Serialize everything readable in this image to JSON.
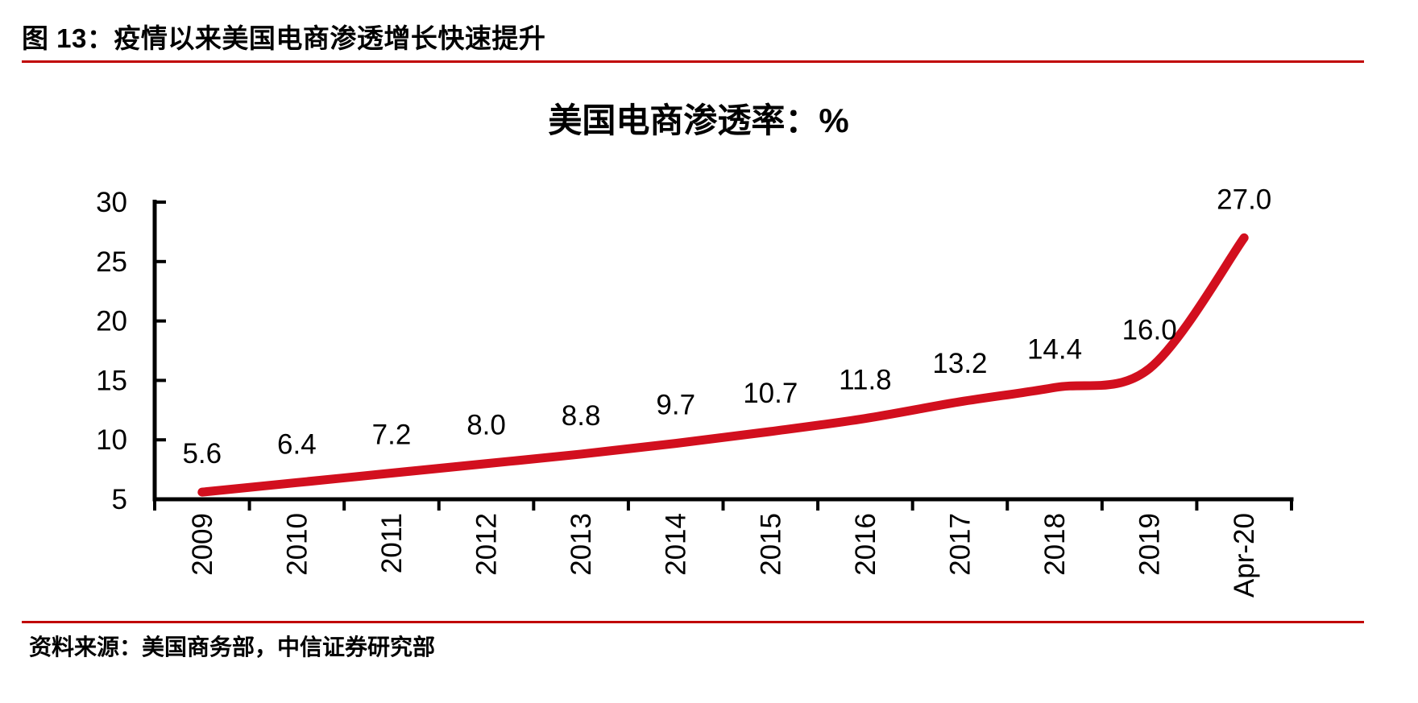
{
  "page": {
    "figure_label": "图 13：疫情以来美国电商渗透增长快速提升",
    "source_label": "资料来源：美国商务部，中信证券研究部"
  },
  "colors": {
    "rule_red": "#C00000",
    "line_red": "#D20F1E",
    "axis_black": "#000000",
    "text_black": "#000000",
    "background": "#FFFFFF"
  },
  "chart_data": {
    "type": "line",
    "title": "美国电商渗透率：%",
    "categories": [
      "2009",
      "2010",
      "2011",
      "2012",
      "2013",
      "2014",
      "2015",
      "2016",
      "2017",
      "2018",
      "2019",
      "Apr-20"
    ],
    "series": [
      {
        "name": "美国电商渗透率",
        "values": [
          5.6,
          6.4,
          7.2,
          8.0,
          8.8,
          9.7,
          10.7,
          11.8,
          13.2,
          14.4,
          16.0,
          27.0
        ]
      }
    ],
    "data_labels": [
      "5.6",
      "6.4",
      "7.2",
      "8.0",
      "8.8",
      "9.7",
      "10.7",
      "11.8",
      "13.2",
      "14.4",
      "16.0",
      "27.0"
    ],
    "xlabel": "",
    "ylabel": "",
    "y_ticks": [
      5,
      10,
      15,
      20,
      25,
      30
    ],
    "ylim": [
      5,
      30
    ],
    "x_tick_rotation": -90,
    "grid": false,
    "legend_position": "none",
    "line_color": "#D20F1E",
    "smooth": true
  }
}
